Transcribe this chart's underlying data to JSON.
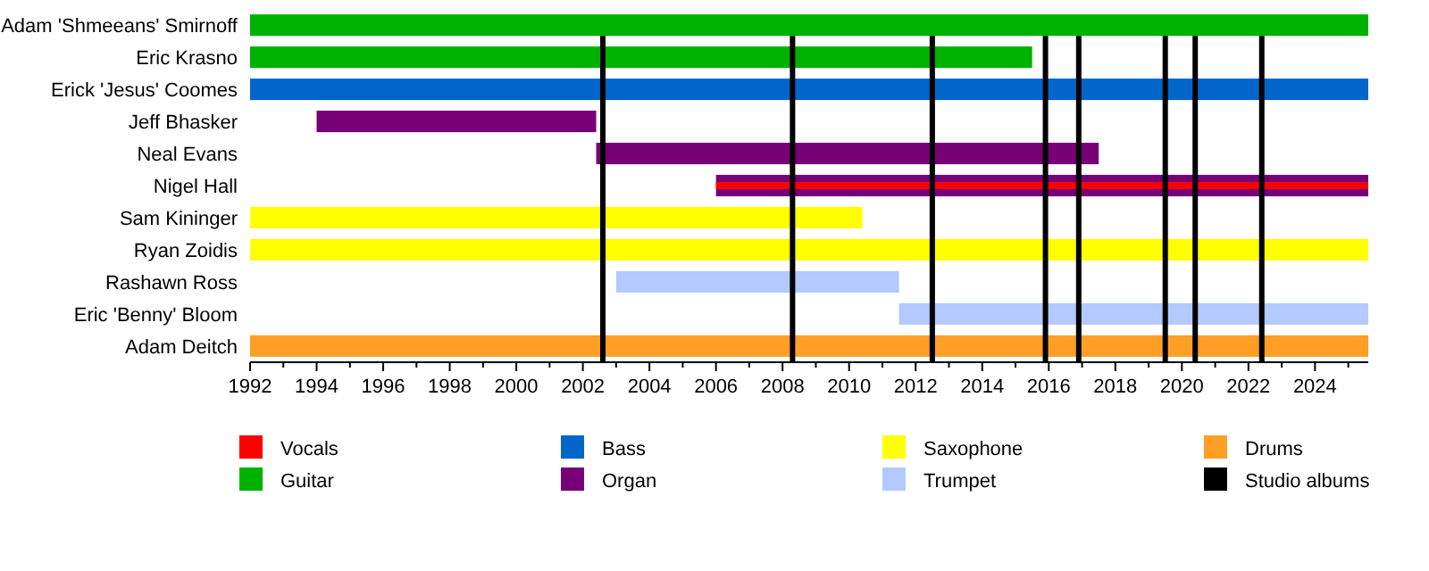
{
  "chart_data": {
    "type": "bar",
    "orientation": "horizontal",
    "categories": [
      "Adam 'Shmeeans' Smirnoff",
      "Eric Krasno",
      "Erick 'Jesus' Coomes",
      "Jeff Bhasker",
      "Neal Evans",
      "Nigel Hall",
      "Sam Kininger",
      "Ryan Zoidis",
      "Rashawn Ross",
      "Eric 'Benny' Bloom",
      "Adam Deitch"
    ],
    "series": [
      {
        "name": "Vocals",
        "color": "#ff0000",
        "base": [
          null,
          null,
          null,
          null,
          null,
          2006.0,
          null,
          null,
          null,
          null,
          null
        ],
        "values": [
          null,
          null,
          null,
          null,
          null,
          19.6,
          null,
          null,
          null,
          null,
          null
        ]
      },
      {
        "name": "Guitar",
        "color": "#00b200",
        "base": [
          1992,
          1992,
          null,
          null,
          null,
          null,
          null,
          null,
          null,
          null,
          null
        ],
        "values": [
          33.6,
          23.5,
          null,
          null,
          null,
          null,
          null,
          null,
          null,
          null,
          null
        ]
      },
      {
        "name": "Bass",
        "color": "#0066cc",
        "base": [
          null,
          null,
          1992,
          null,
          null,
          null,
          null,
          null,
          null,
          null,
          null
        ],
        "values": [
          null,
          null,
          33.6,
          null,
          null,
          null,
          null,
          null,
          null,
          null,
          null
        ]
      },
      {
        "name": "Organ",
        "color": "#770077",
        "base": [
          null,
          null,
          null,
          1994.0,
          2002.4,
          2006.0,
          null,
          null,
          null,
          null,
          null
        ],
        "values": [
          null,
          null,
          null,
          8.4,
          15.1,
          19.6,
          null,
          null,
          null,
          null,
          null
        ]
      },
      {
        "name": "Saxophone",
        "color": "#ffff00",
        "base": [
          null,
          null,
          null,
          null,
          null,
          null,
          1992,
          1992,
          null,
          null,
          null
        ],
        "values": [
          null,
          null,
          null,
          null,
          null,
          null,
          18.4,
          33.6,
          null,
          null,
          null
        ]
      },
      {
        "name": "Trumpet",
        "color": "#b3c9ff",
        "base": [
          null,
          null,
          null,
          null,
          null,
          null,
          null,
          null,
          2003.0,
          2011.5,
          null
        ],
        "values": [
          null,
          null,
          null,
          null,
          null,
          null,
          null,
          null,
          8.5,
          14.1,
          null
        ]
      },
      {
        "name": "Drums",
        "color": "#ff9f26",
        "base": [
          null,
          null,
          null,
          null,
          null,
          null,
          null,
          null,
          null,
          null,
          1992
        ],
        "values": [
          null,
          null,
          null,
          null,
          null,
          null,
          null,
          null,
          null,
          null,
          33.6
        ]
      }
    ],
    "ref_lines": [
      {
        "axis": "x",
        "value": 2002.6,
        "label": "Studio albums",
        "color": "#000000"
      },
      {
        "axis": "x",
        "value": 2008.3,
        "color": "#000000"
      },
      {
        "axis": "x",
        "value": 2012.5,
        "color": "#000000"
      },
      {
        "axis": "x",
        "value": 2015.9,
        "color": "#000000"
      },
      {
        "axis": "x",
        "value": 2016.9,
        "color": "#000000"
      },
      {
        "axis": "x",
        "value": 2019.5,
        "color": "#000000"
      },
      {
        "axis": "x",
        "value": 2020.4,
        "color": "#000000"
      },
      {
        "axis": "x",
        "value": 2022.4,
        "color": "#000000"
      }
    ],
    "xlim": [
      1992,
      2025.6
    ],
    "xticks": [
      1992,
      {
        "value": 1993,
        "label": null
      },
      1994,
      {
        "value": 1995,
        "label": null
      },
      1996,
      {
        "value": 1997,
        "label": null
      },
      1998,
      {
        "value": 1999,
        "label": null
      },
      2000,
      {
        "value": 2001,
        "label": null
      },
      2002,
      {
        "value": 2003,
        "label": null
      },
      2004,
      {
        "value": 2005,
        "label": null
      },
      2006,
      {
        "value": 2007,
        "label": null
      },
      2008,
      {
        "value": 2009,
        "label": null
      },
      2010,
      {
        "value": 2011,
        "label": null
      },
      2012,
      {
        "value": 2013,
        "label": null
      },
      2014,
      {
        "value": 2015,
        "label": null
      },
      2016,
      {
        "value": 2017,
        "label": null
      },
      2018,
      {
        "value": 2019,
        "label": null
      },
      2020,
      {
        "value": 2021,
        "label": null
      },
      2022,
      {
        "value": 2023,
        "label": null
      },
      2024,
      {
        "value": 2025,
        "label": null
      }
    ],
    "grid": false,
    "legend": "bottom"
  }
}
